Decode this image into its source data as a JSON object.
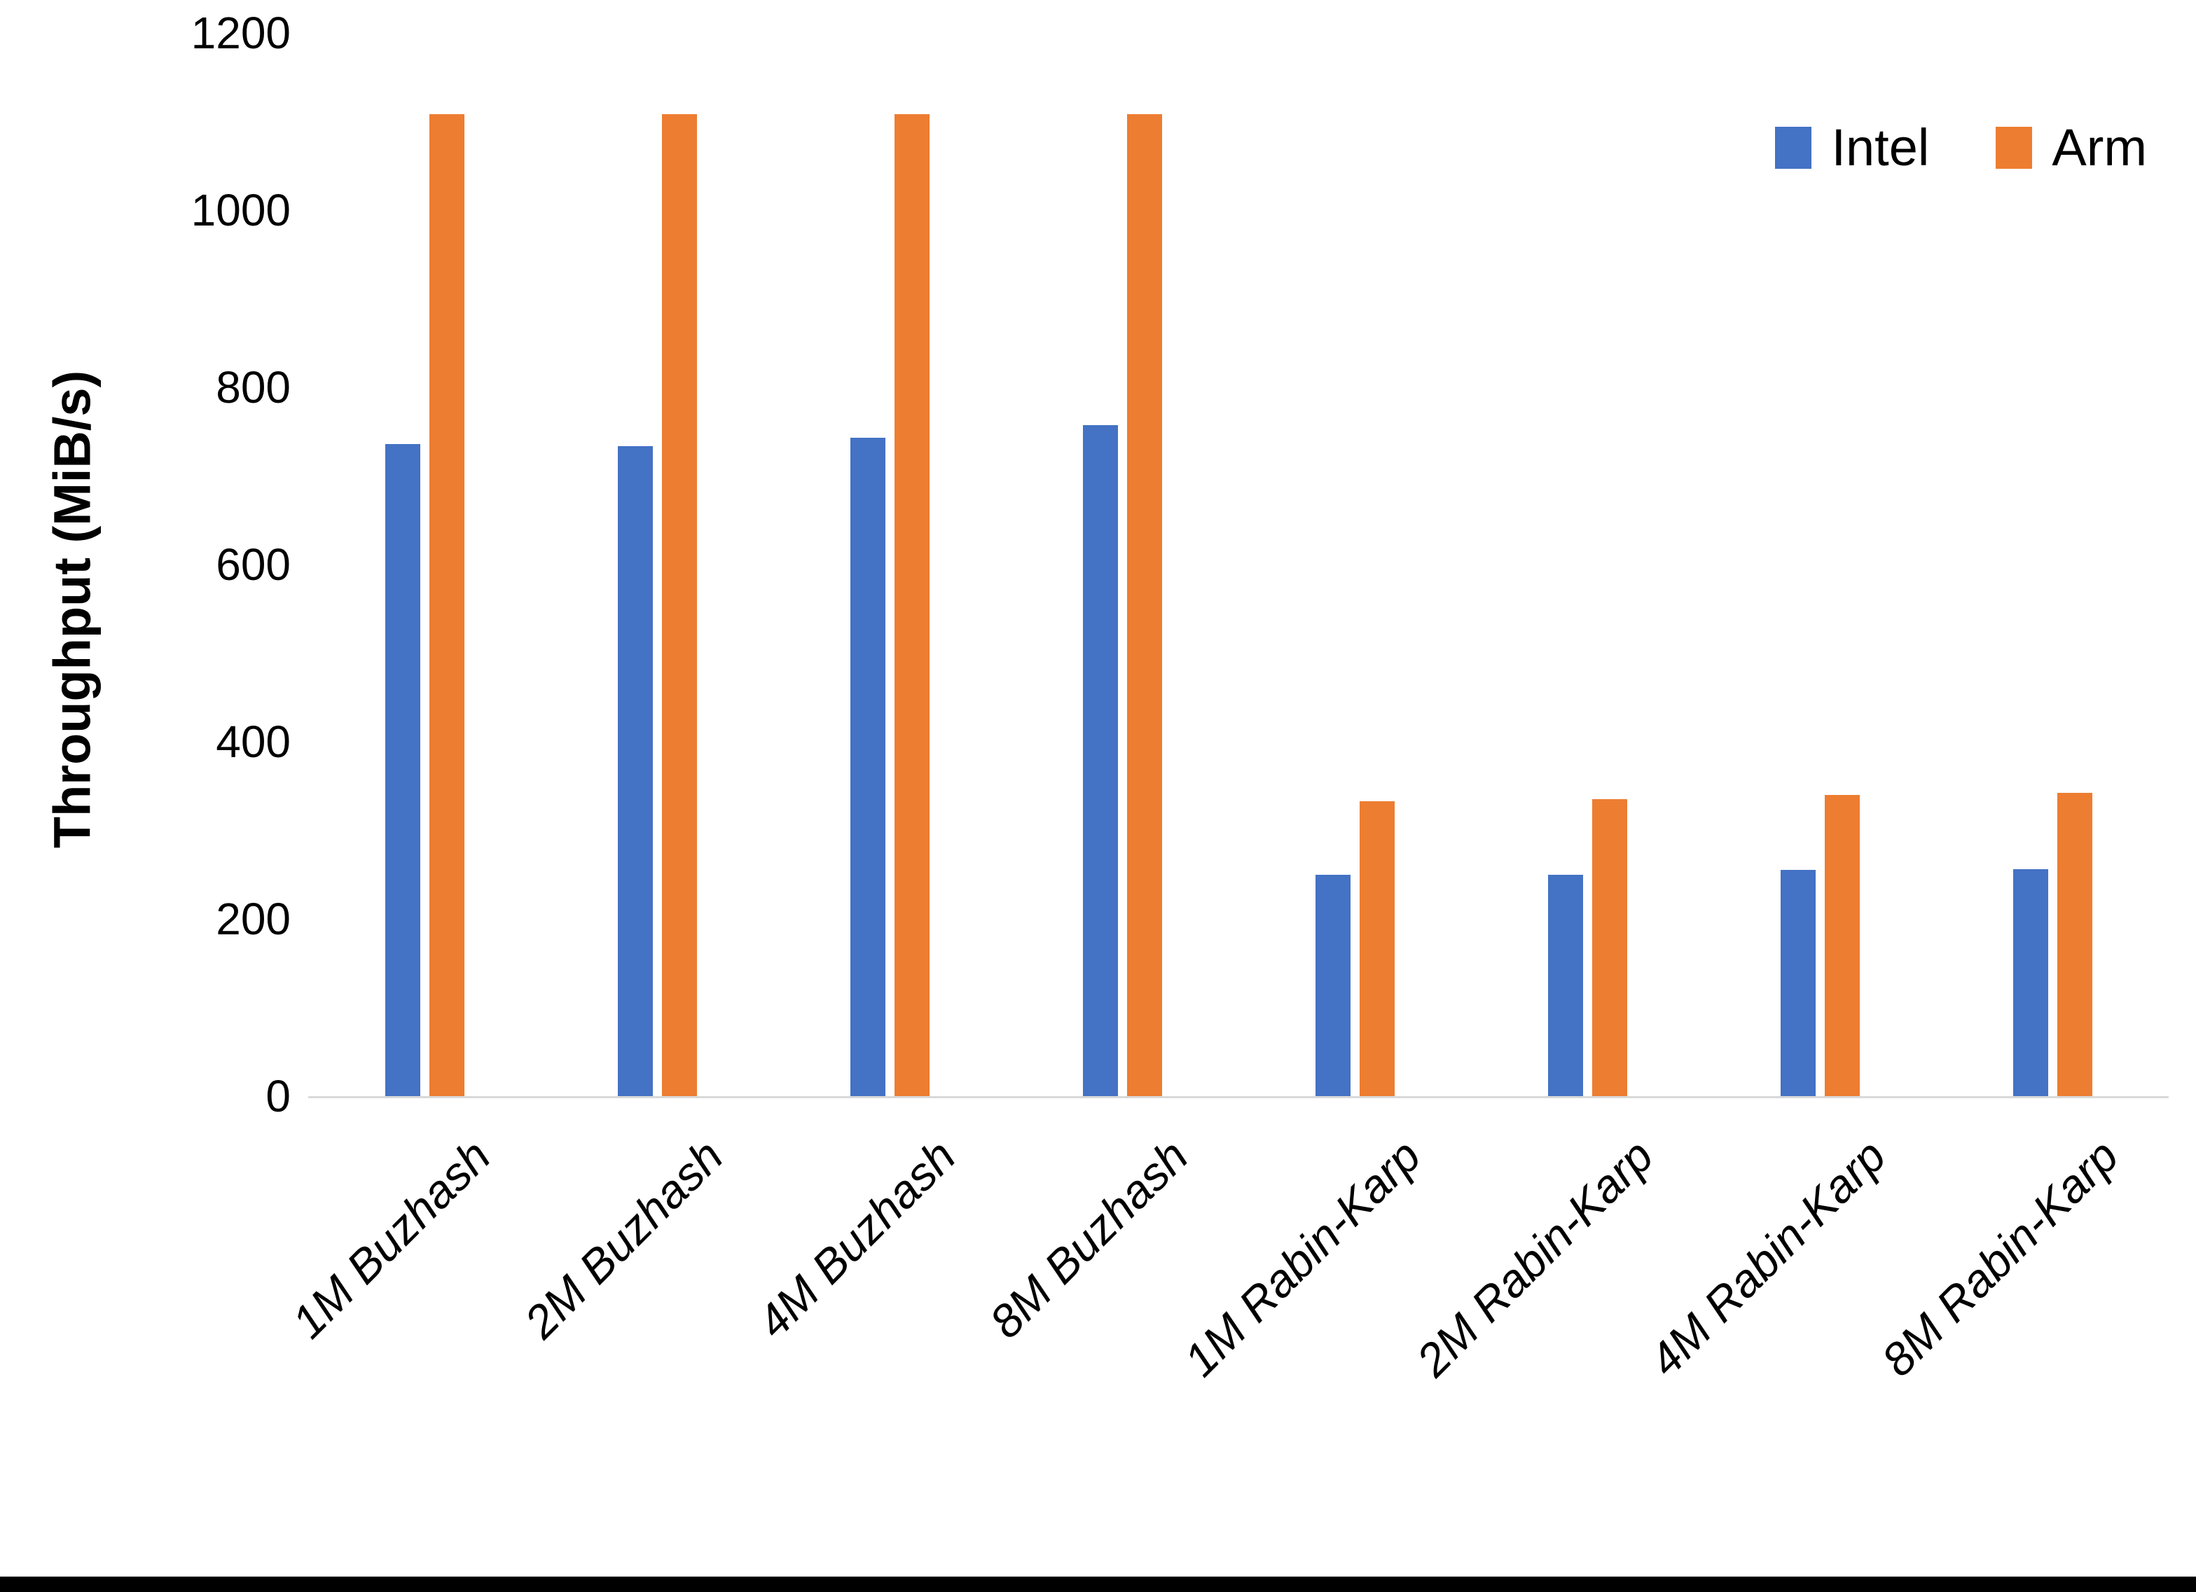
{
  "chart_data": {
    "type": "bar",
    "title": "",
    "xlabel": "",
    "ylabel": "Throughput (MiB/s)",
    "ylim": [
      0,
      1200
    ],
    "yticks": [
      0,
      200,
      400,
      600,
      800,
      1000,
      1200
    ],
    "grid": false,
    "legend_position": "top-right",
    "axis_line_color": "#d9d9d9",
    "categories": [
      "1M Buzhash",
      "2M Buzhash",
      "4M Buzhash",
      "8M Buzhash",
      "1M Rabin-Karp",
      "2M Rabin-Karp",
      "4M Rabin-Karp",
      "8M Rabin-Karp"
    ],
    "series": [
      {
        "name": "Intel",
        "color": "#4472C4",
        "values": [
          736,
          734,
          743,
          757,
          250,
          250,
          255,
          256
        ]
      },
      {
        "name": "Arm",
        "color": "#ED7D31",
        "values": [
          1108,
          1108,
          1108,
          1108,
          333,
          335,
          340,
          342
        ]
      }
    ]
  }
}
